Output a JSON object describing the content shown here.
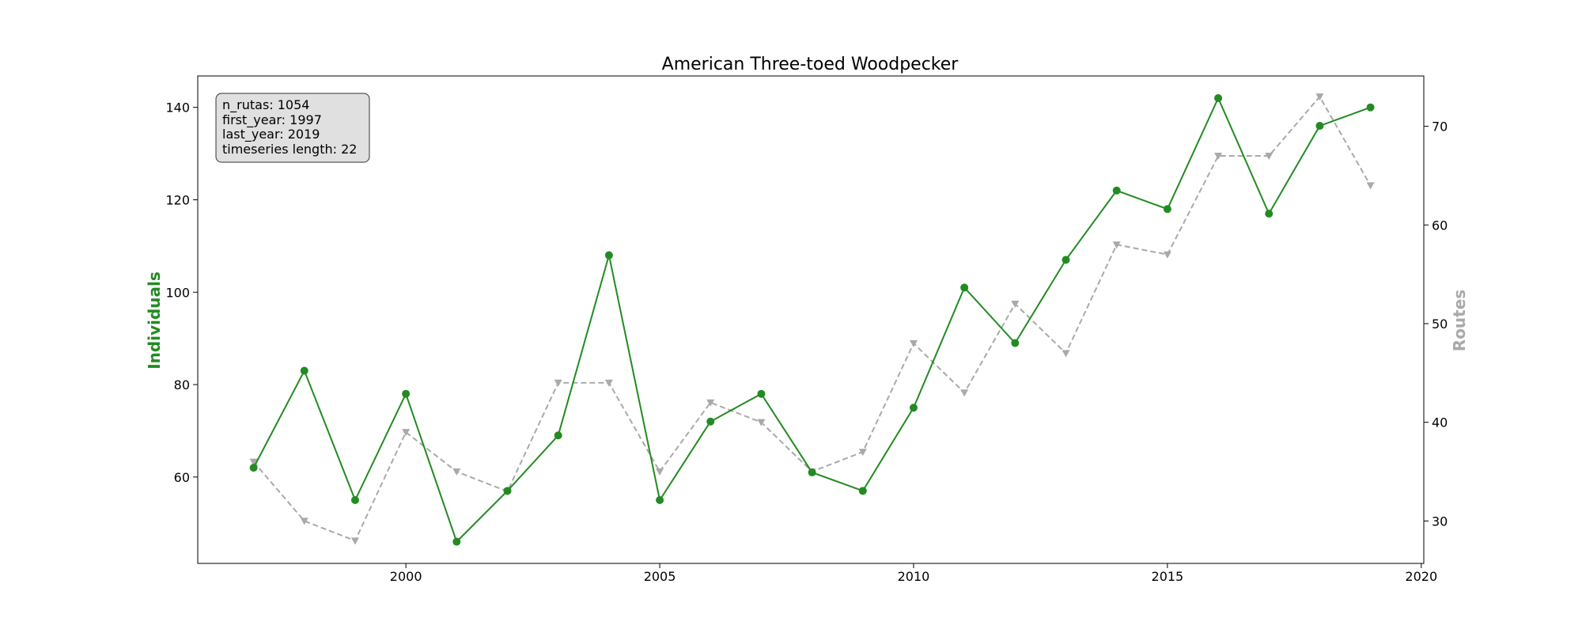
{
  "chart_data": {
    "type": "line",
    "title": "American Three-toed Woodpecker",
    "xlabel": "",
    "ylabel": "Individuals",
    "ylabel_right": "Routes",
    "x": [
      1997,
      1998,
      1999,
      2000,
      2001,
      2002,
      2003,
      2004,
      2005,
      2006,
      2007,
      2008,
      2009,
      2010,
      2011,
      2012,
      2013,
      2014,
      2015,
      2016,
      2017,
      2018,
      2019
    ],
    "xlim": [
      1995.9,
      2020.05
    ],
    "ylim": [
      41.3,
      146.8
    ],
    "ylim_right": [
      25.7,
      75.1
    ],
    "x_ticks": [
      2000,
      2005,
      2010,
      2015,
      2020
    ],
    "y_ticks_left": [
      60,
      80,
      100,
      120,
      140
    ],
    "y_ticks_right": [
      30,
      40,
      50,
      60,
      70
    ],
    "grid": false,
    "series": [
      {
        "axis": "left",
        "color": "#228B22",
        "style": "solid",
        "marker": "circle",
        "values": [
          62,
          83,
          55,
          78,
          46,
          57,
          69,
          108,
          55,
          72,
          78,
          61,
          57,
          75,
          101,
          89,
          107,
          122,
          118,
          142,
          117,
          136,
          140
        ]
      },
      {
        "axis": "right",
        "color": "#A9A9A9",
        "style": "dashed",
        "marker": "triangle-down",
        "values": [
          36,
          30,
          28,
          39,
          35,
          33,
          44,
          44,
          35,
          42,
          40,
          35,
          37,
          48,
          43,
          52,
          47,
          58,
          57,
          67,
          67,
          73,
          64
        ]
      }
    ],
    "info_box": {
      "lines": [
        "n_rutas: 1054",
        "first_year: 1997",
        "last_year: 2019",
        "timeseries length: 22"
      ]
    }
  }
}
